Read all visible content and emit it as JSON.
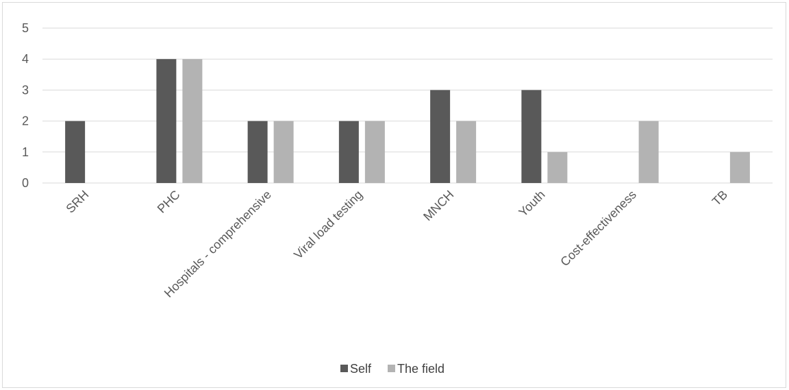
{
  "chart_data": {
    "type": "bar",
    "title": "",
    "xlabel": "",
    "ylabel": "",
    "categories": [
      "SRH",
      "PHC",
      "Hospitals - comprehensive",
      "Viral load testing",
      "MNCH",
      "Youth",
      "Cost-effectiveness",
      "TB"
    ],
    "series": [
      {
        "name": "Self",
        "values": [
          2,
          4,
          2,
          2,
          3,
          3,
          0,
          0
        ],
        "color": "#595959"
      },
      {
        "name": "The field",
        "values": [
          0,
          4,
          2,
          2,
          2,
          1,
          2,
          1
        ],
        "color": "#b3b3b3"
      }
    ],
    "ylim": [
      0,
      5
    ],
    "yticks": [
      "0",
      "1",
      "2",
      "3",
      "4",
      "5"
    ],
    "grid": true,
    "gridColor": "#d9d9d9",
    "legend_position": "bottom"
  }
}
